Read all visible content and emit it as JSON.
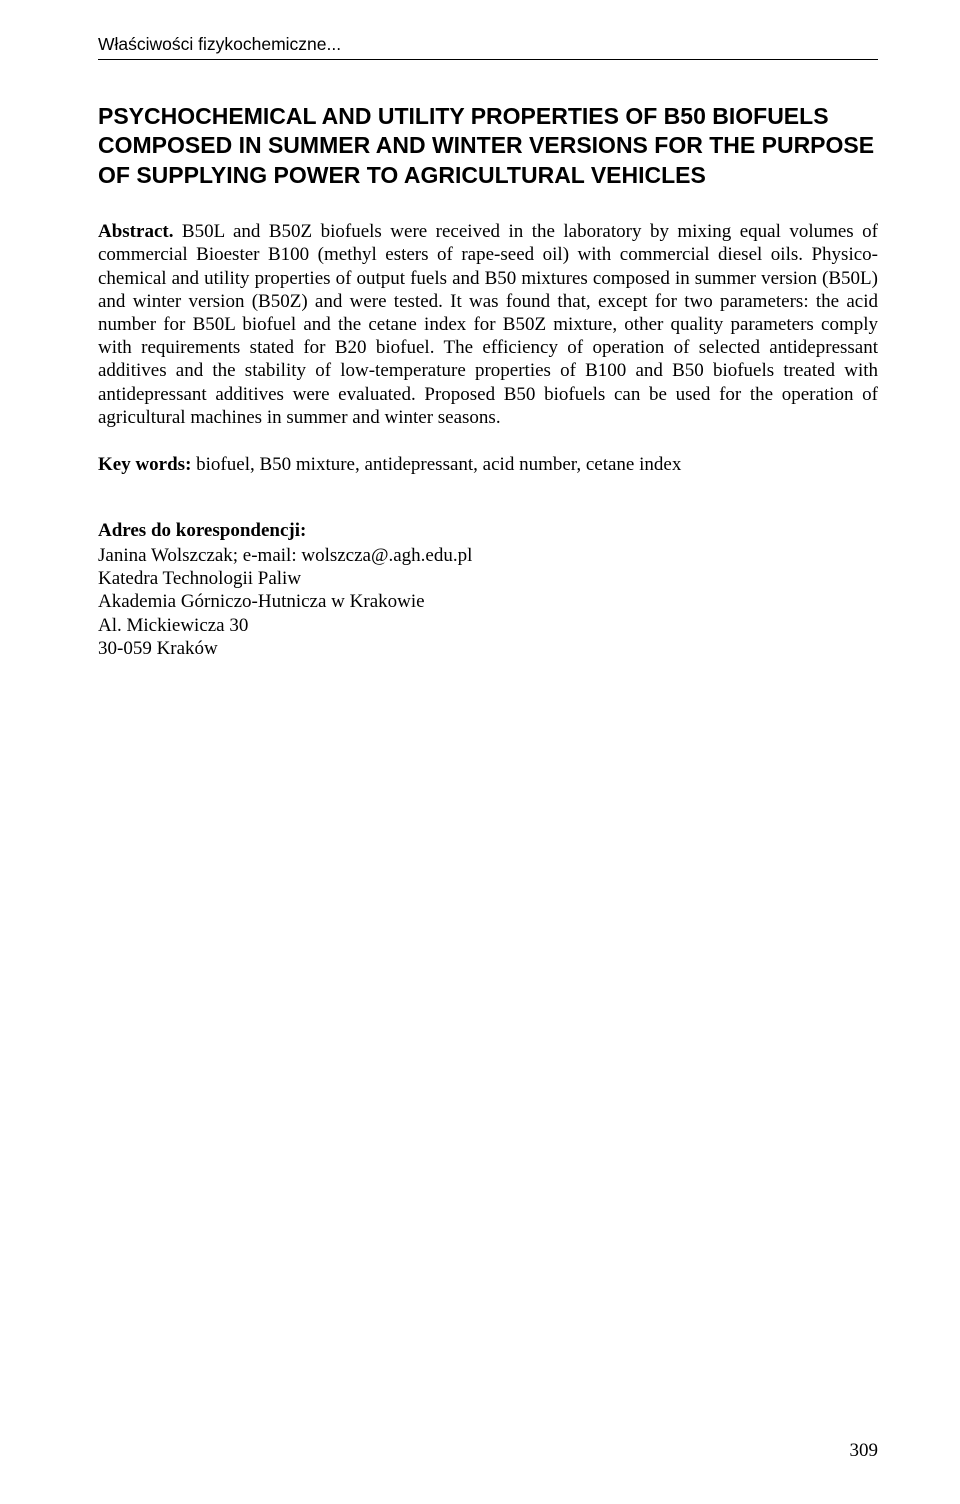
{
  "header": {
    "running_head": "Właściwości fizykochemiczne..."
  },
  "title": "PSYCHOCHEMICAL AND UTILITY PROPERTIES OF B50 BIOFUELS COMPOSED IN SUMMER AND WINTER VERSIONS FOR THE PURPOSE OF SUPPLYING POWER TO AGRICULTURAL VEHICLES",
  "abstract": {
    "label": "Abstract.",
    "text": " B50L and B50Z biofuels were received in the laboratory by mixing equal volumes of commercial Bioester B100 (methyl esters of rape-seed oil) with commercial diesel oils. Physico-chemical and utility properties of output fuels and B50 mixtures composed in summer version (B50L) and winter version (B50Z) and were tested. It was found that, except for two parameters: the acid number for B50L biofuel and the cetane index for B50Z mixture, other quality parameters comply with requirements stated for B20 biofuel. The efficiency of operation of selected antidepressant additives and the stability of low-temperature properties of  B100 and B50 biofuels treated with antidepressant additives were evaluated. Proposed B50 biofuels can be used for the operation of agricultural machines in summer and winter seasons."
  },
  "keywords": {
    "label": "Key words:",
    "text": " biofuel, B50 mixture, antidepressant, acid number, cetane index"
  },
  "correspondence": {
    "heading": "Adres do korespondencji:",
    "lines": [
      "Janina Wolszczak; e-mail: wolszcza@.agh.edu.pl",
      "Katedra Technologii Paliw",
      "Akademia Górniczo-Hutnicza w Krakowie",
      "Al. Mickiewicza 30",
      "30-059 Kraków"
    ]
  },
  "page_number": "309"
}
